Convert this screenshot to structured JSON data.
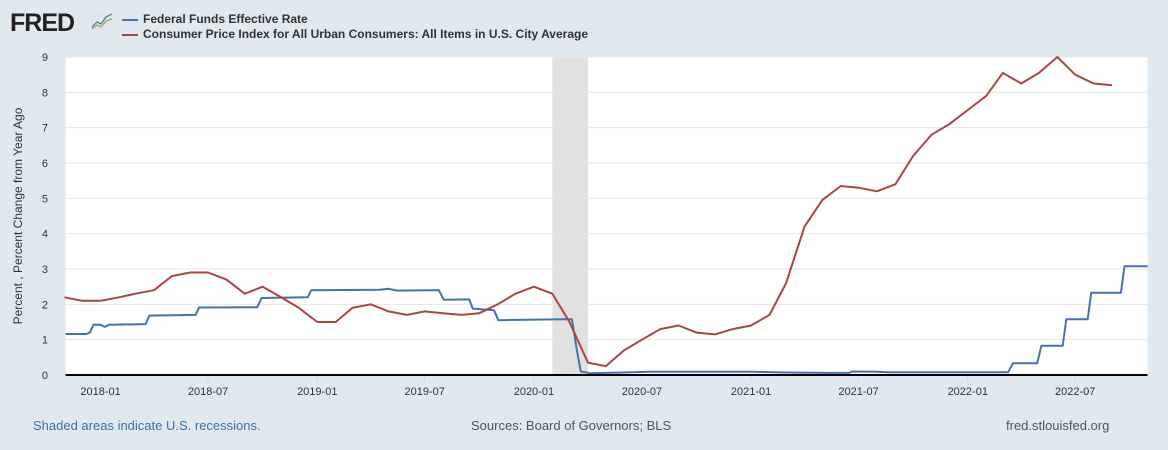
{
  "header": {
    "logo_text": "FRED",
    "legend": [
      {
        "label": "Federal Funds Effective Rate",
        "color": "#4572a7"
      },
      {
        "label": "Consumer Price Index for All Urban Consumers: All Items in U.S. City Average",
        "color": "#aa4643"
      }
    ]
  },
  "chart_data": {
    "type": "line",
    "ylabel": "Percent , Percent Change from Year Ago",
    "ylim": [
      0,
      9
    ],
    "yticks": [
      "0",
      "1",
      "2",
      "3",
      "4",
      "5",
      "6",
      "7",
      "8",
      "9"
    ],
    "xlim": [
      "2017-11-03",
      "2022-10-31"
    ],
    "xticks": [
      "2018-01",
      "2018-07",
      "2019-01",
      "2019-07",
      "2020-01",
      "2020-07",
      "2021-01",
      "2021-07",
      "2022-01",
      "2022-07"
    ],
    "grid": true,
    "recessions": [
      [
        "2020-02-01",
        "2020-04-01"
      ]
    ],
    "series": [
      {
        "name": "Federal Funds Effective Rate",
        "color": "#4572a7",
        "points": [
          [
            "2017-11-03",
            1.16
          ],
          [
            "2017-12-08",
            1.16
          ],
          [
            "2017-12-14",
            1.2
          ],
          [
            "2017-12-20",
            1.42
          ],
          [
            "2018-01-01",
            1.42
          ],
          [
            "2018-01-08",
            1.36
          ],
          [
            "2018-01-15",
            1.42
          ],
          [
            "2018-03-18",
            1.44
          ],
          [
            "2018-03-24",
            1.68
          ],
          [
            "2018-06-10",
            1.7
          ],
          [
            "2018-06-16",
            1.91
          ],
          [
            "2018-09-22",
            1.92
          ],
          [
            "2018-09-29",
            2.18
          ],
          [
            "2018-12-16",
            2.2
          ],
          [
            "2018-12-22",
            2.4
          ],
          [
            "2019-04-15",
            2.41
          ],
          [
            "2019-05-01",
            2.44
          ],
          [
            "2019-05-15",
            2.39
          ],
          [
            "2019-07-10",
            2.4
          ],
          [
            "2019-07-25",
            2.4
          ],
          [
            "2019-08-02",
            2.13
          ],
          [
            "2019-09-14",
            2.14
          ],
          [
            "2019-09-20",
            1.88
          ],
          [
            "2019-10-26",
            1.83
          ],
          [
            "2019-11-02",
            1.55
          ],
          [
            "2020-02-20",
            1.58
          ],
          [
            "2020-03-05",
            1.58
          ],
          [
            "2020-03-14",
            0.65
          ],
          [
            "2020-03-20",
            0.1
          ],
          [
            "2020-04-05",
            0.05
          ],
          [
            "2020-06-15",
            0.08
          ],
          [
            "2020-07-15",
            0.09
          ],
          [
            "2021-01-01",
            0.09
          ],
          [
            "2021-03-01",
            0.07
          ],
          [
            "2021-05-15",
            0.06
          ],
          [
            "2021-06-15",
            0.06
          ],
          [
            "2021-06-20",
            0.1
          ],
          [
            "2021-08-01",
            0.09
          ],
          [
            "2021-08-20",
            0.08
          ],
          [
            "2022-03-10",
            0.08
          ],
          [
            "2022-03-18",
            0.33
          ],
          [
            "2022-04-28",
            0.33
          ],
          [
            "2022-05-05",
            0.83
          ],
          [
            "2022-06-10",
            0.83
          ],
          [
            "2022-06-16",
            1.58
          ],
          [
            "2022-07-22",
            1.58
          ],
          [
            "2022-07-28",
            2.33
          ],
          [
            "2022-09-16",
            2.33
          ],
          [
            "2022-09-22",
            3.08
          ],
          [
            "2022-10-31",
            3.08
          ]
        ]
      },
      {
        "name": "Consumer Price Index for All Urban Consumers: All Items in U.S. City Average",
        "color": "#aa4643",
        "points": [
          [
            "2017-11-01",
            2.2
          ],
          [
            "2017-12-01",
            2.1
          ],
          [
            "2018-01-01",
            2.1
          ],
          [
            "2018-02-01",
            2.2
          ],
          [
            "2018-03-01",
            2.3
          ],
          [
            "2018-04-01",
            2.4
          ],
          [
            "2018-05-01",
            2.8
          ],
          [
            "2018-06-01",
            2.9
          ],
          [
            "2018-07-01",
            2.9
          ],
          [
            "2018-08-01",
            2.7
          ],
          [
            "2018-09-01",
            2.3
          ],
          [
            "2018-10-01",
            2.5
          ],
          [
            "2018-11-01",
            2.2
          ],
          [
            "2018-12-01",
            1.9
          ],
          [
            "2019-01-01",
            1.5
          ],
          [
            "2019-02-01",
            1.5
          ],
          [
            "2019-03-01",
            1.9
          ],
          [
            "2019-04-01",
            2.0
          ],
          [
            "2019-05-01",
            1.8
          ],
          [
            "2019-06-01",
            1.7
          ],
          [
            "2019-07-01",
            1.8
          ],
          [
            "2019-08-01",
            1.75
          ],
          [
            "2019-09-01",
            1.7
          ],
          [
            "2019-10-01",
            1.75
          ],
          [
            "2019-11-01",
            2.0
          ],
          [
            "2019-12-01",
            2.3
          ],
          [
            "2020-01-01",
            2.5
          ],
          [
            "2020-02-01",
            2.3
          ],
          [
            "2020-03-01",
            1.5
          ],
          [
            "2020-04-01",
            0.35
          ],
          [
            "2020-05-01",
            0.25
          ],
          [
            "2020-06-01",
            0.7
          ],
          [
            "2020-07-01",
            1.0
          ],
          [
            "2020-08-01",
            1.3
          ],
          [
            "2020-09-01",
            1.4
          ],
          [
            "2020-10-01",
            1.2
          ],
          [
            "2020-11-01",
            1.15
          ],
          [
            "2020-12-01",
            1.3
          ],
          [
            "2021-01-01",
            1.4
          ],
          [
            "2021-02-01",
            1.7
          ],
          [
            "2021-03-01",
            2.6
          ],
          [
            "2021-04-01",
            4.2
          ],
          [
            "2021-05-01",
            4.95
          ],
          [
            "2021-06-01",
            5.35
          ],
          [
            "2021-07-01",
            5.3
          ],
          [
            "2021-08-01",
            5.2
          ],
          [
            "2021-09-01",
            5.4
          ],
          [
            "2021-10-01",
            6.2
          ],
          [
            "2021-11-01",
            6.8
          ],
          [
            "2021-12-01",
            7.1
          ],
          [
            "2022-01-01",
            7.5
          ],
          [
            "2022-02-01",
            7.9
          ],
          [
            "2022-03-01",
            8.55
          ],
          [
            "2022-04-01",
            8.25
          ],
          [
            "2022-05-01",
            8.55
          ],
          [
            "2022-06-01",
            9.0
          ],
          [
            "2022-07-01",
            8.5
          ],
          [
            "2022-08-01",
            8.25
          ],
          [
            "2022-09-01",
            8.2
          ]
        ]
      }
    ]
  },
  "footer": {
    "recession_note": "Shaded areas indicate U.S. recessions.",
    "sources": "Sources: Board of Governors; BLS",
    "site": "fred.stlouisfed.org"
  }
}
